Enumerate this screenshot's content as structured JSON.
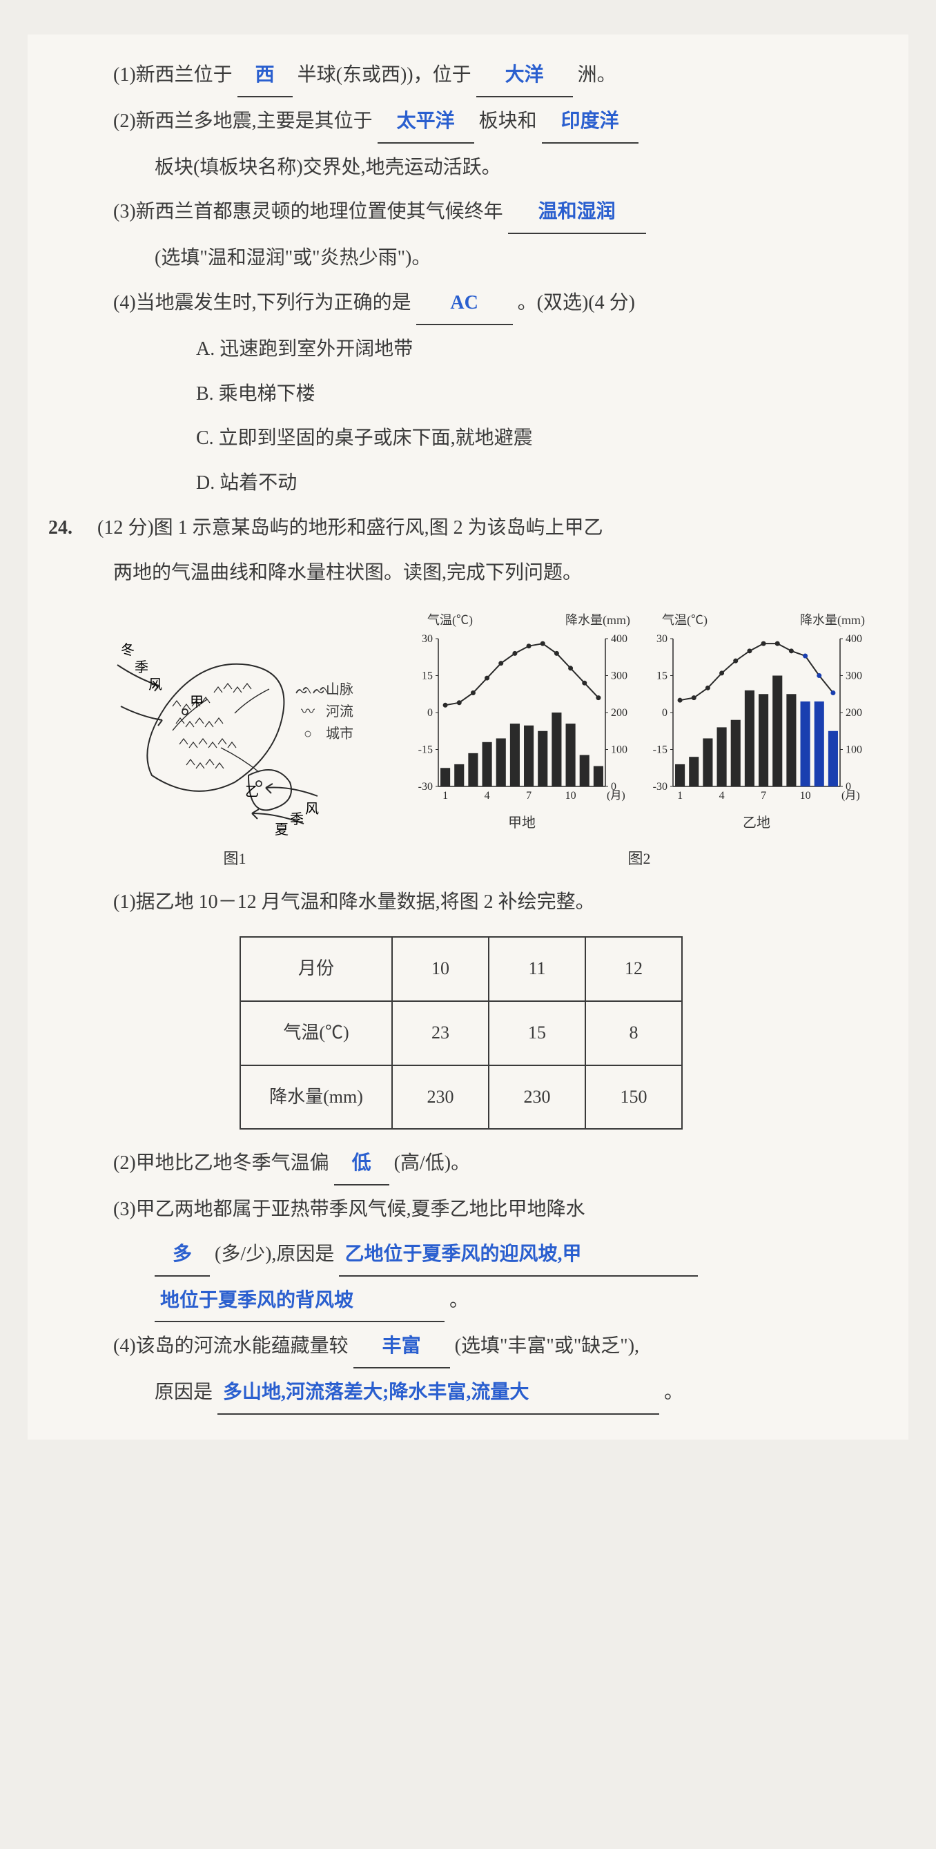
{
  "q23": {
    "sub1": {
      "pre": "(1)新西兰位于",
      "ans1": "西",
      "mid": "半球(东或西))，位于",
      "ans2": "大洋",
      "post": "洲。"
    },
    "sub2": {
      "line1_pre": "(2)新西兰多地震,主要是其位于",
      "ans1": "太平洋",
      "mid1": "板块和",
      "ans2": "印度洋",
      "line2": "板块(填板块名称)交界处,地壳运动活跃。"
    },
    "sub3": {
      "line1": "(3)新西兰首都惠灵顿的地理位置使其气候终年",
      "ans1": "温和湿润",
      "line2": "(选填\"温和湿润\"或\"炎热少雨\")。"
    },
    "sub4": {
      "line1_pre": "(4)当地震发生时,下列行为正确的是",
      "ans1": "AC",
      "line1_post": "。(双选)(4 分)",
      "optA": "A. 迅速跑到室外开阔地带",
      "optB": "B. 乘电梯下楼",
      "optC": "C. 立即到坚固的桌子或床下面,就地避震",
      "optD": "D. 站着不动"
    }
  },
  "q24": {
    "num": "24.",
    "head1": "(12 分)图 1 示意某岛屿的地形和盛行风,图 2 为该岛屿上甲乙",
    "head2": "两地的气温曲线和降水量柱状图。读图,完成下列问题。",
    "map": {
      "label_winter": "冬季风",
      "label_summer": "夏季风",
      "mark_jia": "甲",
      "mark_yi": "乙",
      "legend_mtn": "山脉",
      "legend_river": "河流",
      "legend_city": "城市",
      "caption": "图1"
    },
    "charts": {
      "temp_label": "气温(℃)",
      "precip_label": "降水量(mm)",
      "month_label": "(月)",
      "jia_label": "甲地",
      "yi_label": "乙地",
      "caption": "图2",
      "y_temp_ticks": [
        "30",
        "15",
        "0",
        "-15",
        "-30"
      ],
      "y_precip_ticks": [
        "400",
        "300",
        "200",
        "100",
        "0"
      ],
      "x_ticks": [
        "1",
        "4",
        "7",
        "10"
      ],
      "jia": {
        "temp": [
          3,
          4,
          8,
          14,
          20,
          24,
          27,
          28,
          24,
          18,
          12,
          6
        ],
        "precip": [
          50,
          60,
          90,
          120,
          130,
          170,
          165,
          150,
          200,
          170,
          85,
          55
        ]
      },
      "yi": {
        "temp": [
          5,
          6,
          10,
          16,
          21,
          25,
          28,
          28,
          25,
          23,
          15,
          8
        ],
        "precip": [
          60,
          80,
          130,
          160,
          180,
          260,
          250,
          300,
          250,
          230,
          230,
          150
        ],
        "drawn_bars": [
          60,
          80,
          130,
          160,
          180,
          260,
          250,
          300,
          250,
          230,
          230,
          150
        ],
        "drawn_temp": [
          5,
          6,
          10,
          16,
          21,
          25,
          28,
          28,
          25,
          23,
          15,
          8
        ],
        "student_months": [
          10,
          11,
          12
        ]
      },
      "bar_color": "#2a2a2a",
      "student_bar_color": "#1a3fb0",
      "student_dot_color": "#1a3fb0",
      "line_color": "#2a2a2a",
      "grid_color": "#888",
      "bg": "#f8f6f2"
    },
    "sub1": "(1)据乙地 10－12 月气温和降水量数据,将图 2 补绘完整。",
    "table": {
      "r1": "月份",
      "r2": "气温(℃)",
      "r3": "降水量(mm)",
      "c": [
        "10",
        "11",
        "12"
      ],
      "temp": [
        "23",
        "15",
        "8"
      ],
      "prec": [
        "230",
        "230",
        "150"
      ]
    },
    "sub2": {
      "pre": "(2)甲地比乙地冬季气温偏",
      "ans": "低",
      "post": "(高/低)。"
    },
    "sub3": {
      "line1": "(3)甲乙两地都属于亚热带季风气候,夏季乙地比甲地降水",
      "ans1": "多",
      "mid1": "(多/少),原因是",
      "ans2a": "乙地位于夏季风的迎风坡,甲",
      "ans2b": "地位于夏季风的背风坡",
      "post": "。"
    },
    "sub4": {
      "pre": "(4)该岛的河流水能蕴藏量较",
      "ans1": "丰富",
      "mid": "(选填\"丰富\"或\"缺乏\"),",
      "line2_pre": "原因是",
      "ans2": "多山地,河流落差大;降水丰富,流量大",
      "post": "。"
    }
  }
}
